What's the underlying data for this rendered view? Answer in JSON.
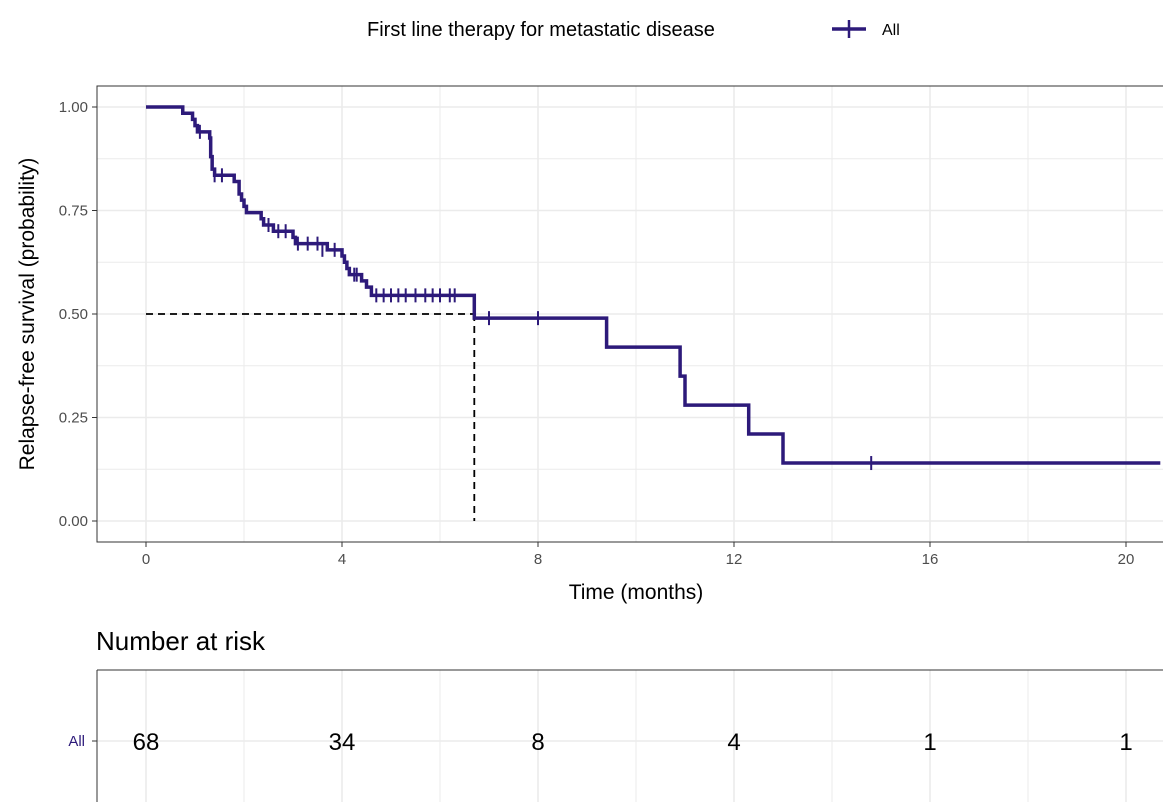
{
  "colors": {
    "curve": "#2d1a7a",
    "grid": "#ebebeb",
    "panel_border": "#333333",
    "median_line": "#000000"
  },
  "chart_data": [
    {
      "type": "line",
      "subtype": "kaplan-meier",
      "legend": {
        "title": "First line therapy for metastatic disease",
        "placement": "top",
        "entries": [
          "All"
        ]
      },
      "xlabel": "Time (months)",
      "ylabel": "Relapse-free survival (probability)",
      "xlim": [
        0,
        20.7
      ],
      "ylim": [
        0,
        1
      ],
      "x_ticks": [
        0,
        4,
        8,
        12,
        16,
        20
      ],
      "x_tick_labels": [
        "0",
        "4",
        "8",
        "12",
        "16",
        "20"
      ],
      "y_ticks": [
        0,
        0.25,
        0.5,
        0.75,
        1.0
      ],
      "y_tick_labels": [
        "0.00",
        "0.25",
        "0.50",
        "0.75",
        "1.00"
      ],
      "grid": true,
      "series": [
        {
          "name": "All",
          "steps": [
            [
              0,
              1.0
            ],
            [
              0.75,
              0.985
            ],
            [
              0.95,
              0.97
            ],
            [
              1.0,
              0.955
            ],
            [
              1.05,
              0.94
            ],
            [
              1.3,
              0.925
            ],
            [
              1.32,
              0.88
            ],
            [
              1.35,
              0.85
            ],
            [
              1.4,
              0.835
            ],
            [
              1.8,
              0.82
            ],
            [
              1.9,
              0.79
            ],
            [
              1.95,
              0.775
            ],
            [
              2.0,
              0.76
            ],
            [
              2.05,
              0.745
            ],
            [
              2.35,
              0.73
            ],
            [
              2.4,
              0.715
            ],
            [
              2.6,
              0.7
            ],
            [
              3.0,
              0.685
            ],
            [
              3.05,
              0.67
            ],
            [
              3.7,
              0.655
            ],
            [
              4.0,
              0.64
            ],
            [
              4.05,
              0.625
            ],
            [
              4.1,
              0.61
            ],
            [
              4.15,
              0.595
            ],
            [
              4.4,
              0.58
            ],
            [
              4.5,
              0.565
            ],
            [
              4.6,
              0.545
            ],
            [
              6.7,
              0.49
            ],
            [
              9.4,
              0.42
            ],
            [
              10.9,
              0.35
            ],
            [
              11.0,
              0.28
            ],
            [
              12.3,
              0.21
            ],
            [
              13.0,
              0.14
            ],
            [
              20.7,
              0.14
            ]
          ],
          "censor_marks": [
            [
              1.1,
              0.94
            ],
            [
              1.4,
              0.835
            ],
            [
              1.55,
              0.835
            ],
            [
              2.5,
              0.715
            ],
            [
              2.7,
              0.7
            ],
            [
              2.85,
              0.7
            ],
            [
              3.1,
              0.67
            ],
            [
              3.3,
              0.67
            ],
            [
              3.5,
              0.67
            ],
            [
              3.6,
              0.655
            ],
            [
              3.85,
              0.655
            ],
            [
              4.25,
              0.595
            ],
            [
              4.3,
              0.595
            ],
            [
              4.7,
              0.545
            ],
            [
              4.85,
              0.545
            ],
            [
              5.0,
              0.545
            ],
            [
              5.15,
              0.545
            ],
            [
              5.3,
              0.545
            ],
            [
              5.5,
              0.545
            ],
            [
              5.7,
              0.545
            ],
            [
              5.85,
              0.545
            ],
            [
              6.0,
              0.545
            ],
            [
              6.2,
              0.545
            ],
            [
              6.3,
              0.545
            ],
            [
              7.0,
              0.49
            ],
            [
              8.0,
              0.49
            ],
            [
              14.8,
              0.14
            ]
          ]
        }
      ],
      "median_survival": {
        "x": 6.7,
        "y": 0.5
      }
    },
    {
      "type": "table",
      "title": "Number at risk",
      "row_labels": [
        "All"
      ],
      "times": [
        0,
        4,
        8,
        12,
        16,
        20
      ],
      "values": [
        "68",
        "34",
        "8",
        "4",
        "1",
        "1"
      ]
    }
  ]
}
